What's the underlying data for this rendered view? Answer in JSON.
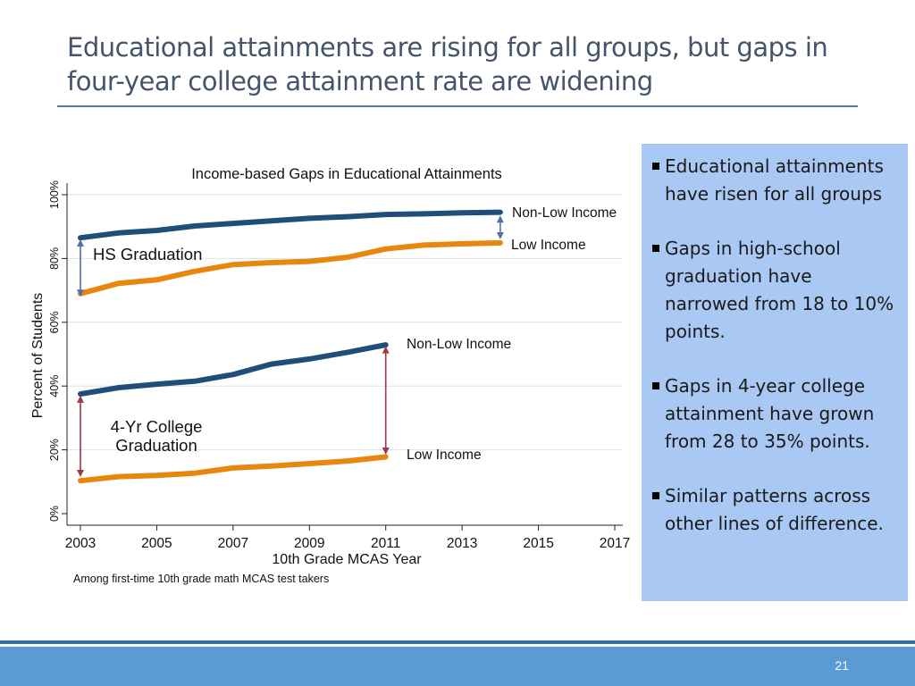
{
  "slide": {
    "title_line1": "Educational attainments are rising for all groups, but gaps in",
    "title_line2": "four-year college attainment rate are widening",
    "page_number": "21"
  },
  "panel": {
    "bullets": [
      "Educational attainments have risen for all groups",
      "Gaps in high-school graduation have narrowed from 18 to 10% points.",
      "Gaps in 4-year college attainment have grown from 28 to 35% points.",
      "Similar patterns across other lines of difference."
    ]
  },
  "chart_data": {
    "type": "line",
    "title": "Income-based Gaps in Educational Attainments",
    "xlabel": "10th Grade MCAS Year",
    "ylabel": "Percent of Students",
    "note": "Among first-time 10th grade math MCAS test takers",
    "xlim": [
      2003,
      2017
    ],
    "ylim": [
      0,
      100
    ],
    "x_ticks": [
      "2003",
      "2005",
      "2007",
      "2009",
      "2011",
      "2013",
      "2015",
      "2017"
    ],
    "y_ticks": [
      "0%",
      "20%",
      "40%",
      "60%",
      "80%",
      "100%"
    ],
    "grid": true,
    "colors": {
      "non_low": "#1f4e79",
      "low": "#e8860d",
      "arrow_hs": "#5570a8",
      "arrow_college": "#9c3a48"
    },
    "groups": [
      {
        "label": "HS Graduation",
        "series": [
          {
            "name": "Non-Low Income",
            "x": [
              2003,
              2004,
              2005,
              2006,
              2007,
              2008,
              2009,
              2010,
              2011,
              2012,
              2013,
              2014
            ],
            "values": [
              86.5,
              88.0,
              88.8,
              90.2,
              91.0,
              91.8,
              92.6,
              93.1,
              93.8,
              94.0,
              94.3,
              94.5
            ]
          },
          {
            "name": "Low Income",
            "x": [
              2003,
              2004,
              2005,
              2006,
              2007,
              2008,
              2009,
              2010,
              2011,
              2012,
              2013,
              2014
            ],
            "values": [
              69.0,
              72.2,
              73.3,
              76.0,
              78.1,
              78.7,
              79.1,
              80.4,
              83.0,
              84.2,
              84.6,
              84.9
            ]
          }
        ]
      },
      {
        "label": "4-Yr College Graduation",
        "series": [
          {
            "name": "Non-Low Income",
            "x": [
              2003,
              2004,
              2005,
              2006,
              2007,
              2008,
              2009,
              2010,
              2011
            ],
            "values": [
              37.5,
              39.5,
              40.6,
              41.5,
              43.6,
              46.9,
              48.5,
              50.6,
              52.9
            ]
          },
          {
            "name": "Low Income",
            "x": [
              2003,
              2004,
              2005,
              2006,
              2007,
              2008,
              2009,
              2010,
              2011
            ],
            "values": [
              10.3,
              11.6,
              12.0,
              12.7,
              14.3,
              14.9,
              15.7,
              16.5,
              17.8
            ]
          }
        ]
      }
    ],
    "gap_arrows": [
      {
        "x": 2003,
        "from": 68.0,
        "to": 86.0,
        "color_key": "arrow_hs"
      },
      {
        "x": 2014,
        "from": 86.0,
        "to": 93.5,
        "color_key": "arrow_hs"
      },
      {
        "x": 2003,
        "from": 11.5,
        "to": 37.0,
        "color_key": "arrow_college"
      },
      {
        "x": 2011,
        "from": 18.5,
        "to": 52.5,
        "color_key": "arrow_college"
      }
    ]
  }
}
